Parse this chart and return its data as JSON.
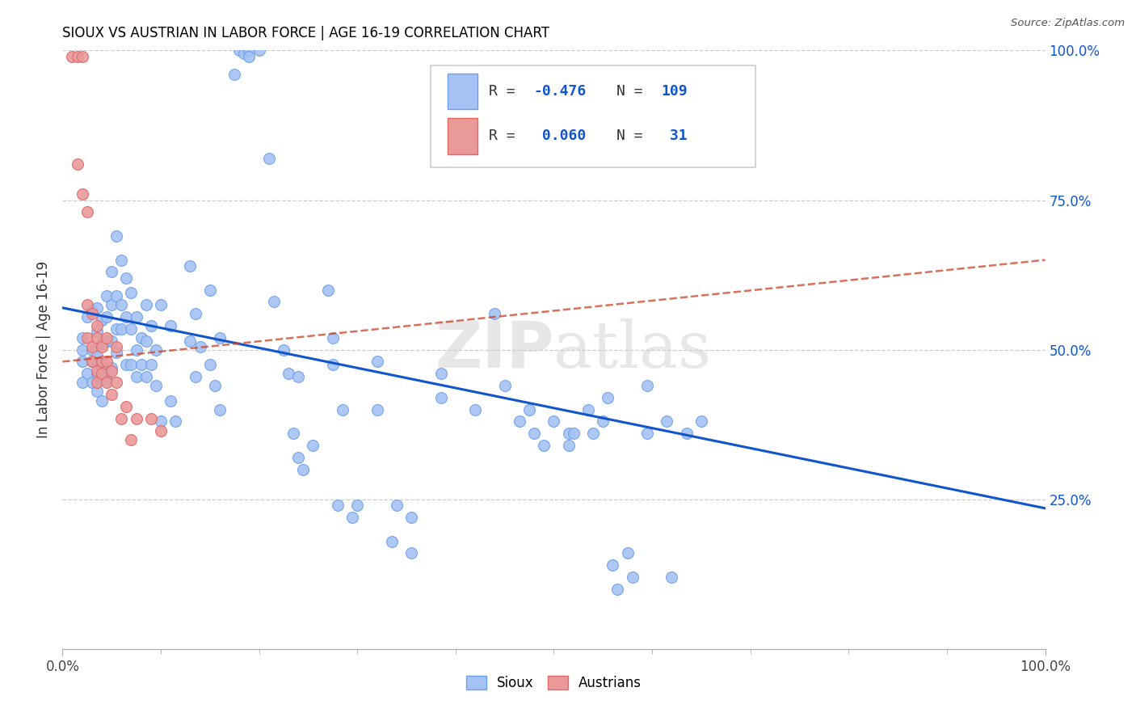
{
  "title": "SIOUX VS AUSTRIAN IN LABOR FORCE | AGE 16-19 CORRELATION CHART",
  "source": "Source: ZipAtlas.com",
  "ylabel": "In Labor Force | Age 16-19",
  "xlim": [
    0.0,
    1.0
  ],
  "ylim": [
    0.0,
    1.0
  ],
  "blue_color": "#a4c2f4",
  "blue_edge_color": "#6d9eeb",
  "pink_color": "#ea9999",
  "pink_edge_color": "#e06666",
  "blue_line_color": "#1155cc",
  "pink_line_color": "#cc4125",
  "watermark_color": "#d0d0d0",
  "grid_color": "#cccccc",
  "ytick_color": "#1155cc",
  "sioux_points": [
    [
      0.02,
      0.5
    ],
    [
      0.02,
      0.52
    ],
    [
      0.02,
      0.48
    ],
    [
      0.02,
      0.445
    ],
    [
      0.025,
      0.46
    ],
    [
      0.025,
      0.555
    ],
    [
      0.03,
      0.5
    ],
    [
      0.03,
      0.48
    ],
    [
      0.03,
      0.445
    ],
    [
      0.03,
      0.565
    ],
    [
      0.035,
      0.53
    ],
    [
      0.035,
      0.49
    ],
    [
      0.035,
      0.46
    ],
    [
      0.035,
      0.43
    ],
    [
      0.035,
      0.57
    ],
    [
      0.04,
      0.55
    ],
    [
      0.04,
      0.51
    ],
    [
      0.04,
      0.47
    ],
    [
      0.04,
      0.45
    ],
    [
      0.04,
      0.415
    ],
    [
      0.045,
      0.59
    ],
    [
      0.045,
      0.555
    ],
    [
      0.045,
      0.515
    ],
    [
      0.045,
      0.47
    ],
    [
      0.045,
      0.45
    ],
    [
      0.05,
      0.63
    ],
    [
      0.05,
      0.575
    ],
    [
      0.05,
      0.515
    ],
    [
      0.05,
      0.47
    ],
    [
      0.055,
      0.69
    ],
    [
      0.055,
      0.59
    ],
    [
      0.055,
      0.535
    ],
    [
      0.055,
      0.495
    ],
    [
      0.06,
      0.65
    ],
    [
      0.06,
      0.575
    ],
    [
      0.06,
      0.535
    ],
    [
      0.065,
      0.62
    ],
    [
      0.065,
      0.555
    ],
    [
      0.065,
      0.475
    ],
    [
      0.07,
      0.595
    ],
    [
      0.07,
      0.535
    ],
    [
      0.07,
      0.475
    ],
    [
      0.075,
      0.555
    ],
    [
      0.075,
      0.5
    ],
    [
      0.075,
      0.455
    ],
    [
      0.08,
      0.52
    ],
    [
      0.08,
      0.475
    ],
    [
      0.085,
      0.575
    ],
    [
      0.085,
      0.515
    ],
    [
      0.085,
      0.455
    ],
    [
      0.09,
      0.54
    ],
    [
      0.09,
      0.475
    ],
    [
      0.095,
      0.5
    ],
    [
      0.095,
      0.44
    ],
    [
      0.1,
      0.575
    ],
    [
      0.1,
      0.38
    ],
    [
      0.11,
      0.54
    ],
    [
      0.11,
      0.415
    ],
    [
      0.115,
      0.38
    ],
    [
      0.13,
      0.64
    ],
    [
      0.13,
      0.515
    ],
    [
      0.135,
      0.56
    ],
    [
      0.135,
      0.455
    ],
    [
      0.14,
      0.505
    ],
    [
      0.15,
      0.6
    ],
    [
      0.15,
      0.475
    ],
    [
      0.155,
      0.44
    ],
    [
      0.16,
      0.52
    ],
    [
      0.16,
      0.4
    ],
    [
      0.175,
      0.96
    ],
    [
      0.18,
      1.0
    ],
    [
      0.185,
      0.995
    ],
    [
      0.19,
      1.0
    ],
    [
      0.19,
      0.99
    ],
    [
      0.2,
      1.0
    ],
    [
      0.21,
      0.82
    ],
    [
      0.215,
      0.58
    ],
    [
      0.225,
      0.5
    ],
    [
      0.23,
      0.46
    ],
    [
      0.235,
      0.36
    ],
    [
      0.24,
      0.32
    ],
    [
      0.24,
      0.455
    ],
    [
      0.245,
      0.3
    ],
    [
      0.255,
      0.34
    ],
    [
      0.27,
      0.6
    ],
    [
      0.275,
      0.52
    ],
    [
      0.275,
      0.475
    ],
    [
      0.28,
      0.24
    ],
    [
      0.285,
      0.4
    ],
    [
      0.295,
      0.22
    ],
    [
      0.3,
      0.24
    ],
    [
      0.32,
      0.48
    ],
    [
      0.32,
      0.4
    ],
    [
      0.335,
      0.18
    ],
    [
      0.34,
      0.24
    ],
    [
      0.355,
      0.16
    ],
    [
      0.355,
      0.22
    ],
    [
      0.385,
      0.46
    ],
    [
      0.385,
      0.42
    ],
    [
      0.4,
      0.9
    ],
    [
      0.42,
      0.4
    ],
    [
      0.44,
      0.56
    ],
    [
      0.45,
      0.44
    ],
    [
      0.465,
      0.38
    ],
    [
      0.475,
      0.4
    ],
    [
      0.48,
      0.36
    ],
    [
      0.49,
      0.34
    ],
    [
      0.5,
      0.38
    ],
    [
      0.515,
      0.36
    ],
    [
      0.515,
      0.34
    ],
    [
      0.52,
      0.36
    ],
    [
      0.535,
      0.4
    ],
    [
      0.54,
      0.36
    ],
    [
      0.55,
      0.38
    ],
    [
      0.555,
      0.42
    ],
    [
      0.56,
      0.14
    ],
    [
      0.565,
      0.1
    ],
    [
      0.575,
      0.16
    ],
    [
      0.58,
      0.12
    ],
    [
      0.595,
      0.36
    ],
    [
      0.595,
      0.44
    ],
    [
      0.615,
      0.38
    ],
    [
      0.62,
      0.12
    ],
    [
      0.635,
      0.36
    ],
    [
      0.65,
      0.38
    ]
  ],
  "austrian_points": [
    [
      0.01,
      0.99
    ],
    [
      0.015,
      0.99
    ],
    [
      0.02,
      0.99
    ],
    [
      0.015,
      0.81
    ],
    [
      0.02,
      0.76
    ],
    [
      0.025,
      0.73
    ],
    [
      0.025,
      0.575
    ],
    [
      0.025,
      0.52
    ],
    [
      0.03,
      0.56
    ],
    [
      0.03,
      0.505
    ],
    [
      0.03,
      0.48
    ],
    [
      0.035,
      0.54
    ],
    [
      0.035,
      0.52
    ],
    [
      0.035,
      0.465
    ],
    [
      0.035,
      0.445
    ],
    [
      0.04,
      0.505
    ],
    [
      0.04,
      0.48
    ],
    [
      0.04,
      0.46
    ],
    [
      0.045,
      0.52
    ],
    [
      0.045,
      0.48
    ],
    [
      0.045,
      0.445
    ],
    [
      0.05,
      0.465
    ],
    [
      0.05,
      0.425
    ],
    [
      0.055,
      0.505
    ],
    [
      0.055,
      0.445
    ],
    [
      0.06,
      0.385
    ],
    [
      0.065,
      0.405
    ],
    [
      0.07,
      0.35
    ],
    [
      0.075,
      0.385
    ],
    [
      0.09,
      0.385
    ],
    [
      0.1,
      0.365
    ]
  ],
  "blue_trend_x": [
    0.0,
    1.0
  ],
  "blue_trend_y": [
    0.57,
    0.235
  ],
  "pink_trend_x": [
    0.0,
    1.0
  ],
  "pink_trend_y": [
    0.48,
    0.65
  ]
}
